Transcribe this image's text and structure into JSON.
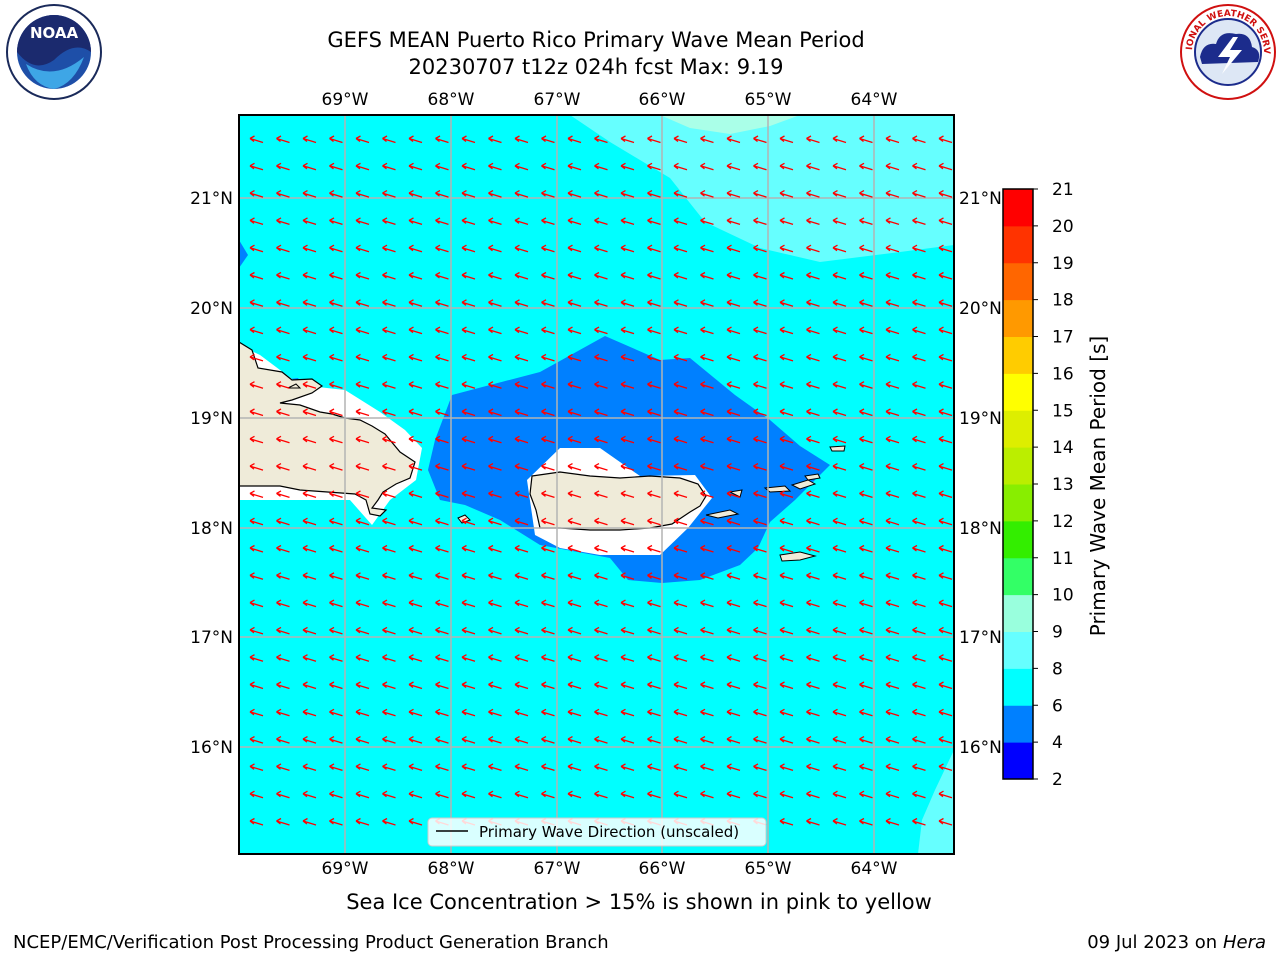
{
  "header": {
    "title_line1": "GEFS MEAN Puerto Rico Primary Wave Mean Period",
    "title_line2": "20230707 t12z 024h fcst   Max: 9.19"
  },
  "logos": {
    "left": "NOAA",
    "right": "NATIONAL WEATHER SERVICE"
  },
  "map": {
    "lon_ticks": [
      "69°W",
      "68°W",
      "67°W",
      "66°W",
      "65°W",
      "64°W"
    ],
    "lat_ticks": [
      "21°N",
      "20°N",
      "19°N",
      "18°N",
      "17°N",
      "16°N"
    ],
    "legend_label": "Primary Wave Direction (unscaled)",
    "colors": {
      "ocean_8": "#00ffff",
      "ocean_6": "#0080ff",
      "ocean_9": "#66ffff",
      "land": "#efebd9",
      "arrow": "#ff0000"
    }
  },
  "colorbar": {
    "label": "Primary Wave Mean Period [s]",
    "ticks": [
      "2",
      "4",
      "6",
      "8",
      "9",
      "10",
      "11",
      "12",
      "13",
      "14",
      "15",
      "16",
      "17",
      "18",
      "19",
      "20",
      "21"
    ],
    "colors": [
      "#0000ff",
      "#0080ff",
      "#00ffff",
      "#66ffff",
      "#99ffdd",
      "#33ff66",
      "#33ee00",
      "#88ee00",
      "#bbee00",
      "#ddee00",
      "#ffff00",
      "#ffcc00",
      "#ff9900",
      "#ff6600",
      "#ff3300",
      "#ff0000"
    ]
  },
  "caption": "Sea Ice Concentration > 15% is shown in pink to yellow",
  "footer": {
    "left": "NCEP/EMC/Verification Post Processing Product Generation Branch",
    "right_date": "09 Jul 2023 on ",
    "right_host": "Hera"
  }
}
